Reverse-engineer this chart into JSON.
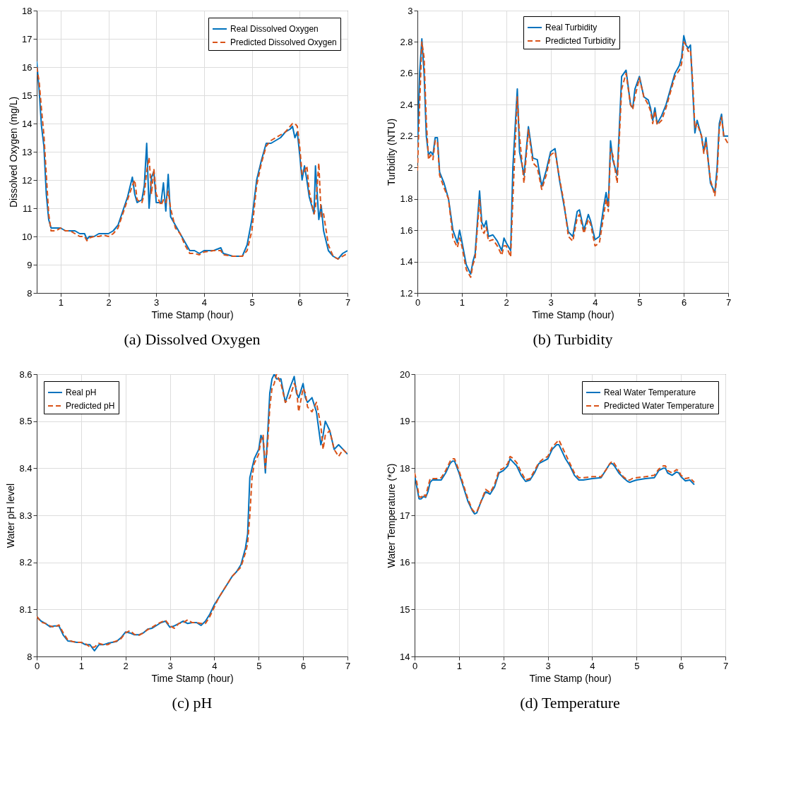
{
  "chart_data": [
    {
      "type": "line",
      "title": "(a) Dissolved Oxygen",
      "xlabel": "Time Stamp (hour)",
      "ylabel": "Dissolved Oxygen (mg/L)",
      "xlim": [
        0.5,
        7
      ],
      "xticks": [
        1,
        2,
        3,
        4,
        5,
        6,
        7
      ],
      "ylim": [
        8,
        18
      ],
      "yticks": [
        8,
        9,
        10,
        11,
        12,
        13,
        14,
        15,
        16,
        17,
        18
      ],
      "grid": true,
      "legend": "top right",
      "x": [
        0.5,
        0.55,
        0.6,
        0.65,
        0.7,
        0.75,
        0.8,
        0.9,
        1.0,
        1.1,
        1.2,
        1.3,
        1.4,
        1.5,
        1.55,
        1.6,
        1.7,
        1.8,
        1.9,
        2.0,
        2.1,
        2.2,
        2.3,
        2.4,
        2.5,
        2.55,
        2.6,
        2.7,
        2.75,
        2.8,
        2.85,
        2.9,
        2.95,
        3.0,
        3.1,
        3.15,
        3.2,
        3.25,
        3.3,
        3.4,
        3.5,
        3.6,
        3.7,
        3.8,
        3.9,
        4.0,
        4.2,
        4.35,
        4.4,
        4.6,
        4.8,
        4.9,
        5.0,
        5.1,
        5.2,
        5.3,
        5.4,
        5.5,
        5.6,
        5.7,
        5.8,
        5.85,
        5.9,
        5.95,
        6.0,
        6.05,
        6.1,
        6.15,
        6.2,
        6.3,
        6.33,
        6.4,
        6.45,
        6.5,
        6.6,
        6.7,
        6.8,
        6.9,
        7.0
      ],
      "series": [
        {
          "name": "Real Dissolved Oxygen",
          "color": "#0072bd",
          "line_style": "solid",
          "values": [
            16.2,
            15.2,
            13.9,
            13.2,
            11.5,
            10.6,
            10.3,
            10.3,
            10.3,
            10.2,
            10.2,
            10.2,
            10.1,
            10.1,
            9.9,
            10.0,
            10.0,
            10.1,
            10.1,
            10.1,
            10.2,
            10.4,
            10.9,
            11.4,
            12.1,
            11.5,
            11.2,
            11.3,
            11.8,
            13.3,
            11.0,
            12.1,
            12.3,
            11.2,
            11.2,
            11.9,
            10.9,
            12.2,
            10.7,
            10.4,
            10.1,
            9.8,
            9.5,
            9.5,
            9.4,
            9.5,
            9.5,
            9.6,
            9.4,
            9.3,
            9.3,
            9.7,
            10.6,
            12.0,
            12.7,
            13.3,
            13.3,
            13.4,
            13.5,
            13.7,
            13.8,
            13.9,
            13.5,
            13.7,
            12.9,
            12.0,
            12.5,
            12.0,
            11.4,
            10.8,
            12.5,
            10.6,
            11.1,
            10.2,
            9.5,
            9.3,
            9.2,
            9.4,
            9.5
          ]
        },
        {
          "name": "Predicted Dissolved Oxygen",
          "color": "#d95319",
          "line_style": "dashed",
          "values": [
            16.0,
            15.5,
            14.5,
            13.6,
            12.2,
            10.8,
            10.2,
            10.2,
            10.3,
            10.2,
            10.2,
            10.1,
            10.0,
            10.0,
            9.85,
            9.95,
            10.0,
            10.0,
            10.05,
            10.0,
            10.1,
            10.3,
            10.8,
            11.3,
            11.8,
            12.0,
            11.3,
            11.2,
            11.5,
            12.3,
            12.8,
            11.5,
            12.4,
            11.5,
            11.1,
            11.3,
            11.2,
            11.6,
            11.0,
            10.3,
            10.1,
            9.7,
            9.4,
            9.4,
            9.35,
            9.45,
            9.5,
            9.5,
            9.35,
            9.3,
            9.3,
            9.5,
            10.2,
            11.8,
            12.6,
            13.2,
            13.4,
            13.5,
            13.6,
            13.7,
            13.9,
            14.0,
            14.0,
            13.9,
            13.2,
            12.2,
            12.3,
            12.5,
            11.6,
            10.8,
            11.0,
            12.6,
            10.7,
            10.8,
            9.7,
            9.3,
            9.2,
            9.3,
            9.4
          ]
        }
      ]
    },
    {
      "type": "line",
      "title": "(b) Turbidity",
      "xlabel": "Time Stamp (hour)",
      "ylabel": "Turbidity (NTU)",
      "xlim": [
        0,
        7
      ],
      "xticks": [
        0,
        1,
        2,
        3,
        4,
        5,
        6,
        7
      ],
      "ylim": [
        1.2,
        3
      ],
      "yticks": [
        1.2,
        1.4,
        1.6,
        1.8,
        2,
        2.2,
        2.4,
        2.6,
        2.8,
        3
      ],
      "grid": true,
      "legend": "top",
      "x": [
        0,
        0.05,
        0.1,
        0.15,
        0.2,
        0.25,
        0.3,
        0.35,
        0.4,
        0.45,
        0.5,
        0.6,
        0.7,
        0.8,
        0.9,
        0.95,
        1.0,
        1.1,
        1.2,
        1.25,
        1.3,
        1.4,
        1.45,
        1.5,
        1.55,
        1.6,
        1.7,
        1.8,
        1.9,
        1.95,
        2.0,
        2.1,
        2.15,
        2.25,
        2.3,
        2.4,
        2.5,
        2.6,
        2.7,
        2.8,
        2.9,
        3.0,
        3.1,
        3.2,
        3.3,
        3.4,
        3.5,
        3.6,
        3.65,
        3.75,
        3.85,
        3.9,
        4.0,
        4.1,
        4.2,
        4.25,
        4.3,
        4.35,
        4.4,
        4.5,
        4.6,
        4.7,
        4.8,
        4.85,
        4.9,
        5.0,
        5.1,
        5.2,
        5.25,
        5.3,
        5.35,
        5.4,
        5.5,
        5.6,
        5.7,
        5.8,
        5.9,
        5.95,
        6.0,
        6.05,
        6.1,
        6.15,
        6.2,
        6.25,
        6.3,
        6.4,
        6.45,
        6.5,
        6.6,
        6.7,
        6.75,
        6.8,
        6.85,
        6.9,
        7.0
      ],
      "series": [
        {
          "name": "Real Turbidity",
          "color": "#0072bd",
          "line_style": "solid",
          "values": [
            2.1,
            2.6,
            2.82,
            2.6,
            2.2,
            2.08,
            2.1,
            2.08,
            2.19,
            2.19,
            1.97,
            1.9,
            1.8,
            1.6,
            1.52,
            1.6,
            1.53,
            1.38,
            1.32,
            1.4,
            1.45,
            1.85,
            1.65,
            1.62,
            1.66,
            1.56,
            1.57,
            1.53,
            1.47,
            1.55,
            1.52,
            1.47,
            2.0,
            2.5,
            2.1,
            1.95,
            2.26,
            2.06,
            2.05,
            1.88,
            1.98,
            2.1,
            2.12,
            1.92,
            1.76,
            1.59,
            1.56,
            1.72,
            1.73,
            1.6,
            1.7,
            1.66,
            1.54,
            1.56,
            1.76,
            1.84,
            1.75,
            2.17,
            2.05,
            1.95,
            2.58,
            2.62,
            2.4,
            2.38,
            2.5,
            2.58,
            2.45,
            2.43,
            2.38,
            2.3,
            2.38,
            2.28,
            2.33,
            2.4,
            2.5,
            2.6,
            2.65,
            2.7,
            2.84,
            2.78,
            2.76,
            2.78,
            2.5,
            2.22,
            2.3,
            2.2,
            2.1,
            2.19,
            1.9,
            1.84,
            2.0,
            2.28,
            2.34,
            2.2,
            2.2
          ]
        },
        {
          "name": "Predicted Turbidity",
          "color": "#d95319",
          "line_style": "dashed",
          "values": [
            1.98,
            2.4,
            2.8,
            2.7,
            2.3,
            2.05,
            2.08,
            2.05,
            2.17,
            2.17,
            1.95,
            1.87,
            1.8,
            1.55,
            1.49,
            1.55,
            1.5,
            1.35,
            1.3,
            1.38,
            1.42,
            1.8,
            1.6,
            1.58,
            1.62,
            1.53,
            1.54,
            1.5,
            1.44,
            1.5,
            1.5,
            1.43,
            1.8,
            2.45,
            2.2,
            1.9,
            2.24,
            2.03,
            2.0,
            1.86,
            1.95,
            2.08,
            2.1,
            1.93,
            1.78,
            1.56,
            1.53,
            1.68,
            1.7,
            1.58,
            1.67,
            1.64,
            1.5,
            1.52,
            1.7,
            1.8,
            1.72,
            2.12,
            2.08,
            1.9,
            2.5,
            2.6,
            2.4,
            2.37,
            2.45,
            2.57,
            2.45,
            2.4,
            2.36,
            2.28,
            2.36,
            2.27,
            2.3,
            2.38,
            2.48,
            2.58,
            2.62,
            2.66,
            2.8,
            2.78,
            2.74,
            2.75,
            2.55,
            2.25,
            2.28,
            2.2,
            2.09,
            2.16,
            1.92,
            1.82,
            1.95,
            2.25,
            2.32,
            2.2,
            2.15
          ]
        }
      ]
    },
    {
      "type": "line",
      "title": "(c) pH",
      "xlabel": "Time Stamp (hour)",
      "ylabel": "Water pH level",
      "xlim": [
        0,
        7
      ],
      "xticks": [
        0,
        1,
        2,
        3,
        4,
        5,
        6,
        7
      ],
      "ylim": [
        8,
        8.6
      ],
      "yticks": [
        8,
        8.1,
        8.2,
        8.3,
        8.4,
        8.5,
        8.6
      ],
      "grid": true,
      "legend": "top left",
      "x": [
        0,
        0.1,
        0.2,
        0.3,
        0.4,
        0.5,
        0.6,
        0.7,
        0.8,
        0.9,
        1.0,
        1.1,
        1.2,
        1.3,
        1.4,
        1.5,
        1.6,
        1.7,
        1.8,
        1.9,
        2.0,
        2.1,
        2.2,
        2.3,
        2.4,
        2.5,
        2.6,
        2.7,
        2.8,
        2.9,
        3.0,
        3.1,
        3.2,
        3.3,
        3.4,
        3.5,
        3.6,
        3.7,
        3.8,
        3.9,
        4.0,
        4.1,
        4.2,
        4.3,
        4.4,
        4.5,
        4.6,
        4.7,
        4.75,
        4.8,
        4.85,
        4.9,
        5.0,
        5.05,
        5.1,
        5.15,
        5.2,
        5.25,
        5.3,
        5.35,
        5.4,
        5.5,
        5.6,
        5.7,
        5.8,
        5.85,
        5.9,
        6.0,
        6.05,
        6.1,
        6.2,
        6.3,
        6.4,
        6.45,
        6.5,
        6.6,
        6.7,
        6.8,
        6.9,
        7.0
      ],
      "series": [
        {
          "name": "Real pH",
          "color": "#0072bd",
          "line_style": "solid",
          "values": [
            8.085,
            8.075,
            8.07,
            8.063,
            8.065,
            8.065,
            8.045,
            8.033,
            8.032,
            8.03,
            8.03,
            8.025,
            8.025,
            8.012,
            8.025,
            8.025,
            8.028,
            8.03,
            8.032,
            8.04,
            8.052,
            8.05,
            8.046,
            8.046,
            8.05,
            8.058,
            8.06,
            8.066,
            8.072,
            8.075,
            8.062,
            8.065,
            8.07,
            8.075,
            8.07,
            8.072,
            8.072,
            8.066,
            8.075,
            8.09,
            8.11,
            8.125,
            8.14,
            8.155,
            8.17,
            8.18,
            8.195,
            8.23,
            8.26,
            8.38,
            8.4,
            8.42,
            8.44,
            8.47,
            8.46,
            8.39,
            8.47,
            8.56,
            8.59,
            8.6,
            8.59,
            8.59,
            8.54,
            8.57,
            8.595,
            8.56,
            8.55,
            8.58,
            8.55,
            8.54,
            8.55,
            8.52,
            8.45,
            8.47,
            8.5,
            8.48,
            8.44,
            8.45,
            8.44,
            8.43
          ]
        },
        {
          "name": "Predicted pH",
          "color": "#d95319",
          "line_style": "dashed",
          "values": [
            8.085,
            8.073,
            8.07,
            8.065,
            8.062,
            8.067,
            8.05,
            8.035,
            8.032,
            8.03,
            8.03,
            8.027,
            8.02,
            8.02,
            8.028,
            8.025,
            8.025,
            8.03,
            8.033,
            8.038,
            8.05,
            8.055,
            8.047,
            8.045,
            8.05,
            8.057,
            8.062,
            8.068,
            8.073,
            8.077,
            8.065,
            8.06,
            8.07,
            8.072,
            8.078,
            8.072,
            8.072,
            8.07,
            8.07,
            8.085,
            8.105,
            8.125,
            8.14,
            8.155,
            8.17,
            8.18,
            8.19,
            8.22,
            8.24,
            8.3,
            8.38,
            8.41,
            8.43,
            8.46,
            8.47,
            8.4,
            8.45,
            8.53,
            8.57,
            8.58,
            8.6,
            8.58,
            8.54,
            8.55,
            8.58,
            8.57,
            8.52,
            8.57,
            8.56,
            8.53,
            8.52,
            8.54,
            8.49,
            8.44,
            8.47,
            8.48,
            8.44,
            8.425,
            8.44,
            8.43
          ]
        }
      ]
    },
    {
      "type": "line",
      "title": "(d) Temperature",
      "xlabel": "Time Stamp (hour)",
      "ylabel": "Water Temperature (*C)",
      "xlim": [
        0,
        7
      ],
      "xticks": [
        0,
        1,
        2,
        3,
        4,
        5,
        6,
        7
      ],
      "ylim": [
        14,
        20
      ],
      "yticks": [
        14,
        15,
        16,
        17,
        18,
        19,
        20
      ],
      "grid": true,
      "legend": "top right",
      "x": [
        0,
        0.05,
        0.1,
        0.15,
        0.2,
        0.25,
        0.3,
        0.35,
        0.4,
        0.5,
        0.6,
        0.7,
        0.8,
        0.85,
        0.9,
        1.0,
        1.1,
        1.2,
        1.3,
        1.35,
        1.4,
        1.5,
        1.6,
        1.7,
        1.8,
        1.9,
        2.0,
        2.1,
        2.15,
        2.2,
        2.3,
        2.4,
        2.5,
        2.6,
        2.7,
        2.8,
        2.9,
        3.0,
        3.1,
        3.2,
        3.25,
        3.3,
        3.4,
        3.5,
        3.6,
        3.7,
        3.8,
        4.0,
        4.2,
        4.3,
        4.4,
        4.45,
        4.5,
        4.6,
        4.7,
        4.8,
        4.85,
        4.9,
        5.0,
        5.2,
        5.4,
        5.5,
        5.6,
        5.65,
        5.7,
        5.8,
        5.9,
        5.95,
        6.0,
        6.1,
        6.2,
        6.3
      ],
      "series": [
        {
          "name": "Real Water Temperature",
          "color": "#0072bd",
          "line_style": "solid",
          "values": [
            17.85,
            17.6,
            17.35,
            17.35,
            17.4,
            17.38,
            17.5,
            17.7,
            17.75,
            17.75,
            17.75,
            17.9,
            18.1,
            18.15,
            18.15,
            17.9,
            17.6,
            17.3,
            17.1,
            17.03,
            17.05,
            17.3,
            17.5,
            17.45,
            17.6,
            17.9,
            17.95,
            18.05,
            18.2,
            18.15,
            18.05,
            17.85,
            17.72,
            17.75,
            17.9,
            18.1,
            18.15,
            18.2,
            18.4,
            18.5,
            18.5,
            18.4,
            18.2,
            18.05,
            17.85,
            17.75,
            17.75,
            17.78,
            17.8,
            17.95,
            18.1,
            18.1,
            18.05,
            17.9,
            17.8,
            17.72,
            17.7,
            17.72,
            17.75,
            17.78,
            17.8,
            17.95,
            18.0,
            18.0,
            17.9,
            17.85,
            17.92,
            17.9,
            17.82,
            17.73,
            17.75,
            17.65
          ]
        },
        {
          "name": "Predicted Water Temperature",
          "color": "#d95319",
          "line_style": "dashed",
          "values": [
            17.9,
            17.7,
            17.4,
            17.38,
            17.45,
            17.4,
            17.6,
            17.78,
            17.78,
            17.78,
            17.8,
            17.95,
            18.15,
            18.2,
            18.2,
            17.95,
            17.65,
            17.35,
            17.12,
            17.07,
            17.07,
            17.3,
            17.55,
            17.48,
            17.65,
            17.95,
            18.0,
            18.1,
            18.25,
            18.22,
            18.12,
            17.92,
            17.75,
            17.78,
            17.95,
            18.12,
            18.2,
            18.25,
            18.45,
            18.55,
            18.6,
            18.5,
            18.3,
            18.1,
            17.9,
            17.8,
            17.8,
            17.82,
            17.82,
            17.95,
            18.1,
            18.15,
            18.1,
            17.95,
            17.82,
            17.75,
            17.75,
            17.78,
            17.8,
            17.82,
            17.85,
            17.98,
            18.05,
            18.05,
            17.95,
            17.9,
            17.97,
            17.95,
            17.85,
            17.78,
            17.8,
            17.7
          ]
        }
      ]
    }
  ]
}
